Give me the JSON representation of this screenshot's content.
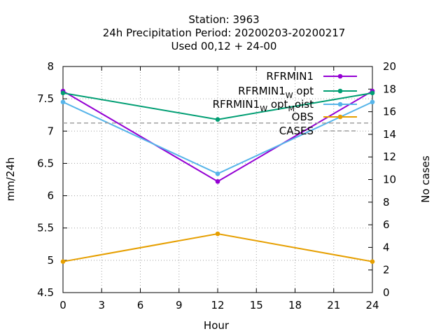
{
  "header": {
    "line1": "Station:      3963",
    "line2": "24h Precipitation    Period: 20200203-20200217",
    "line3": "Used  00,12  + 24-00"
  },
  "chart_data": {
    "type": "line",
    "xlabel": "Hour",
    "ylabel": "mm/24h",
    "y2label": "No cases",
    "x": [
      0,
      12,
      24
    ],
    "xticks": [
      0,
      3,
      6,
      9,
      12,
      15,
      18,
      21,
      24
    ],
    "xlim": [
      0,
      24
    ],
    "ylim": [
      4.5,
      8
    ],
    "yticks": [
      "4.5",
      "5",
      "5.5",
      "6",
      "6.5",
      "7",
      "7.5",
      "8"
    ],
    "y2lim": [
      0,
      20
    ],
    "y2ticks": [
      "0",
      "2",
      "4",
      "6",
      "8",
      "10",
      "12",
      "14",
      "16",
      "18",
      "20"
    ],
    "grid": true,
    "legend_position": "top-right",
    "series": [
      {
        "name": "RFRMIN1",
        "name_main": "RFRMIN1",
        "name_sub1": "",
        "name_mid": "",
        "name_sub2": "",
        "name_tail": "",
        "axis": "y",
        "values": [
          7.62,
          6.22,
          7.62
        ],
        "color": "#9400d3",
        "style": "line+points"
      },
      {
        "name": "RFRMIN1_W opt",
        "name_main": "RFRMIN1",
        "name_sub1": "W",
        "name_mid": " opt",
        "name_sub2": "",
        "name_tail": "",
        "axis": "y",
        "values": [
          7.59,
          7.18,
          7.59
        ],
        "color": "#009e73",
        "style": "line+points"
      },
      {
        "name": "RFRMIN1_W opt_M oist",
        "name_main": "RFRMIN1",
        "name_sub1": "W",
        "name_mid": " opt",
        "name_sub2": "M",
        "name_tail": "oist",
        "axis": "y",
        "values": [
          7.45,
          6.34,
          7.45
        ],
        "color": "#56b4e9",
        "style": "line+points"
      },
      {
        "name": "OBS",
        "name_main": "OBS",
        "name_sub1": "",
        "name_mid": "",
        "name_sub2": "",
        "name_tail": "",
        "axis": "y",
        "values": [
          4.98,
          5.41,
          4.98
        ],
        "color": "#e69f00",
        "style": "line+points"
      },
      {
        "name": "CASES",
        "name_main": "CASES",
        "name_sub1": "",
        "name_mid": "",
        "name_sub2": "",
        "name_tail": "",
        "axis": "y2",
        "values": [
          15,
          15,
          15
        ],
        "color": "#a0a0a0",
        "style": "dashed"
      }
    ]
  }
}
